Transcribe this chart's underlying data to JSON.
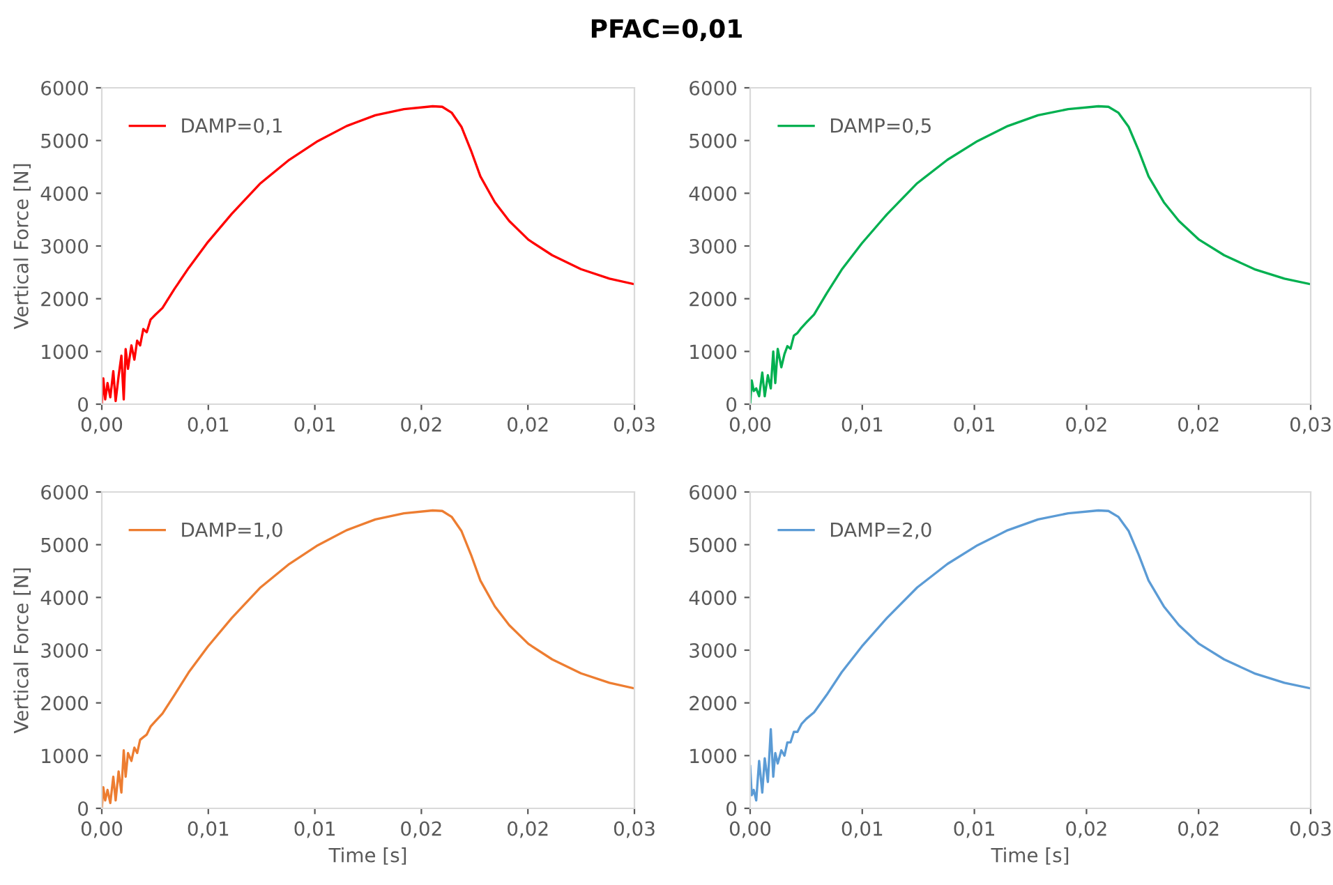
{
  "chart_data": [
    {
      "type": "line",
      "title": "PFAC=0,01",
      "ylabel": "Vertical Force [N]",
      "legend": "top left",
      "grid": false,
      "xlim": [
        0,
        0.025
      ],
      "xticks": [
        {
          "value": 0,
          "label": "0,00"
        },
        {
          "value": 0.005,
          "label": "0,01"
        },
        {
          "value": 0.01,
          "label": "0,01"
        },
        {
          "value": 0.015,
          "label": "0,02"
        },
        {
          "value": 0.02,
          "label": "0,02"
        },
        {
          "value": 0.025,
          "label": "0,03"
        }
      ],
      "ylim": [
        0,
        6000
      ],
      "yticks": [
        0,
        1000,
        2000,
        3000,
        4000,
        5000,
        6000
      ],
      "x": [
        0,
        7e-05,
        0.00016,
        0.00027,
        0.0004,
        0.00054,
        0.00065,
        0.00079,
        0.00092,
        0.00103,
        0.00112,
        0.00123,
        0.00139,
        0.00153,
        0.00166,
        0.0018,
        0.00195,
        0.00211,
        0.00229,
        0.00251,
        0.00285,
        0.00341,
        0.00408,
        0.00498,
        0.0061,
        0.00745,
        0.0088,
        0.01014,
        0.01149,
        0.01284,
        0.01418,
        0.01553,
        0.01598,
        0.01643,
        0.01688,
        0.01733,
        0.01777,
        0.01845,
        0.01912,
        0.02002,
        0.02114,
        0.02249,
        0.02383,
        0.025
      ],
      "series": [
        {
          "name": "DAMP=0,1",
          "color": "#ff0000",
          "values": [
            0,
            490,
            90,
            400,
            130,
            625,
            60,
            535,
            920,
            90,
            1045,
            670,
            1115,
            845,
            1205,
            1115,
            1425,
            1365,
            1605,
            1695,
            1825,
            2185,
            2585,
            3075,
            3610,
            4190,
            4635,
            4990,
            5275,
            5480,
            5595,
            5650,
            5640,
            5525,
            5260,
            4810,
            4320,
            3830,
            3475,
            3120,
            2825,
            2560,
            2380,
            2275
          ]
        }
      ]
    },
    {
      "type": "line",
      "legend": "top left",
      "grid": false,
      "xlim": [
        0,
        0.025
      ],
      "xticks": [
        {
          "value": 0,
          "label": "0,00"
        },
        {
          "value": 0.005,
          "label": "0,01"
        },
        {
          "value": 0.01,
          "label": "0,01"
        },
        {
          "value": 0.015,
          "label": "0,02"
        },
        {
          "value": 0.02,
          "label": "0,02"
        },
        {
          "value": 0.025,
          "label": "0,03"
        }
      ],
      "ylim": [
        0,
        6000
      ],
      "yticks": [
        0,
        1000,
        2000,
        3000,
        4000,
        5000,
        6000
      ],
      "x": [
        0,
        7e-05,
        0.00016,
        0.00027,
        0.0004,
        0.00054,
        0.00065,
        0.00079,
        0.00092,
        0.00103,
        0.00112,
        0.00123,
        0.00139,
        0.00153,
        0.00166,
        0.0018,
        0.00195,
        0.00211,
        0.00229,
        0.00251,
        0.00285,
        0.00341,
        0.00408,
        0.00498,
        0.0061,
        0.00745,
        0.0088,
        0.01014,
        0.01149,
        0.01284,
        0.01418,
        0.01553,
        0.01598,
        0.01643,
        0.01688,
        0.01733,
        0.01777,
        0.01845,
        0.01912,
        0.02002,
        0.02114,
        0.02249,
        0.02383,
        0.025
      ],
      "series": [
        {
          "name": "DAMP=0,5",
          "color": "#00b050",
          "values": [
            0,
            450,
            250,
            300,
            150,
            600,
            150,
            550,
            300,
            1000,
            400,
            1050,
            700,
            950,
            1100,
            1050,
            1300,
            1350,
            1450,
            1550,
            1700,
            2100,
            2550,
            3050,
            3600,
            4190,
            4635,
            4990,
            5275,
            5480,
            5595,
            5650,
            5640,
            5525,
            5260,
            4810,
            4320,
            3830,
            3475,
            3120,
            2825,
            2560,
            2380,
            2275
          ]
        }
      ]
    },
    {
      "type": "line",
      "ylabel": "Vertical Force [N]",
      "xlabel": "Time [s]",
      "legend": "top left",
      "grid": false,
      "xlim": [
        0,
        0.025
      ],
      "xticks": [
        {
          "value": 0,
          "label": "0,00"
        },
        {
          "value": 0.005,
          "label": "0,01"
        },
        {
          "value": 0.01,
          "label": "0,01"
        },
        {
          "value": 0.015,
          "label": "0,02"
        },
        {
          "value": 0.02,
          "label": "0,02"
        },
        {
          "value": 0.025,
          "label": "0,03"
        }
      ],
      "ylim": [
        0,
        6000
      ],
      "yticks": [
        0,
        1000,
        2000,
        3000,
        4000,
        5000,
        6000
      ],
      "x": [
        0,
        7e-05,
        0.00016,
        0.00027,
        0.0004,
        0.00054,
        0.00065,
        0.00079,
        0.00092,
        0.00103,
        0.00112,
        0.00123,
        0.00139,
        0.00153,
        0.00166,
        0.0018,
        0.00195,
        0.00211,
        0.00229,
        0.00251,
        0.00285,
        0.00341,
        0.00408,
        0.00498,
        0.0061,
        0.00745,
        0.0088,
        0.01014,
        0.01149,
        0.01284,
        0.01418,
        0.01553,
        0.01598,
        0.01643,
        0.01688,
        0.01733,
        0.01777,
        0.01845,
        0.01912,
        0.02002,
        0.02114,
        0.02249,
        0.02383,
        0.025
      ],
      "series": [
        {
          "name": "DAMP=1,0",
          "color": "#ed7d31",
          "values": [
            0,
            400,
            150,
            350,
            100,
            600,
            150,
            700,
            300,
            1100,
            600,
            1050,
            900,
            1150,
            1050,
            1300,
            1350,
            1400,
            1550,
            1650,
            1800,
            2150,
            2580,
            3070,
            3610,
            4190,
            4635,
            4990,
            5275,
            5480,
            5595,
            5650,
            5640,
            5525,
            5260,
            4810,
            4320,
            3830,
            3475,
            3120,
            2825,
            2560,
            2380,
            2275
          ]
        }
      ]
    },
    {
      "type": "line",
      "xlabel": "Time [s]",
      "legend": "top left",
      "grid": false,
      "xlim": [
        0,
        0.025
      ],
      "xticks": [
        {
          "value": 0,
          "label": "0,00"
        },
        {
          "value": 0.005,
          "label": "0,01"
        },
        {
          "value": 0.01,
          "label": "0,01"
        },
        {
          "value": 0.015,
          "label": "0,02"
        },
        {
          "value": 0.02,
          "label": "0,02"
        },
        {
          "value": 0.025,
          "label": "0,03"
        }
      ],
      "ylim": [
        0,
        6000
      ],
      "yticks": [
        0,
        1000,
        2000,
        3000,
        4000,
        5000,
        6000
      ],
      "x": [
        0,
        7e-05,
        0.00016,
        0.00027,
        0.0004,
        0.00054,
        0.00065,
        0.00079,
        0.00092,
        0.00103,
        0.00112,
        0.00123,
        0.00139,
        0.00153,
        0.00166,
        0.0018,
        0.00195,
        0.00211,
        0.00229,
        0.00251,
        0.00285,
        0.00341,
        0.00408,
        0.00498,
        0.0061,
        0.00745,
        0.0088,
        0.01014,
        0.01149,
        0.01284,
        0.01418,
        0.01553,
        0.01598,
        0.01643,
        0.01688,
        0.01733,
        0.01777,
        0.01845,
        0.01912,
        0.02002,
        0.02114,
        0.02249,
        0.02383,
        0.025
      ],
      "series": [
        {
          "name": "DAMP=2,0",
          "color": "#5b9bd5",
          "values": [
            800,
            250,
            350,
            150,
            900,
            300,
            950,
            500,
            1500,
            600,
            1050,
            850,
            1100,
            1000,
            1250,
            1250,
            1450,
            1450,
            1600,
            1700,
            1820,
            2150,
            2580,
            3070,
            3610,
            4190,
            4635,
            4990,
            5275,
            5480,
            5595,
            5650,
            5640,
            5525,
            5260,
            4810,
            4320,
            3830,
            3475,
            3120,
            2825,
            2560,
            2380,
            2275
          ]
        }
      ]
    }
  ]
}
